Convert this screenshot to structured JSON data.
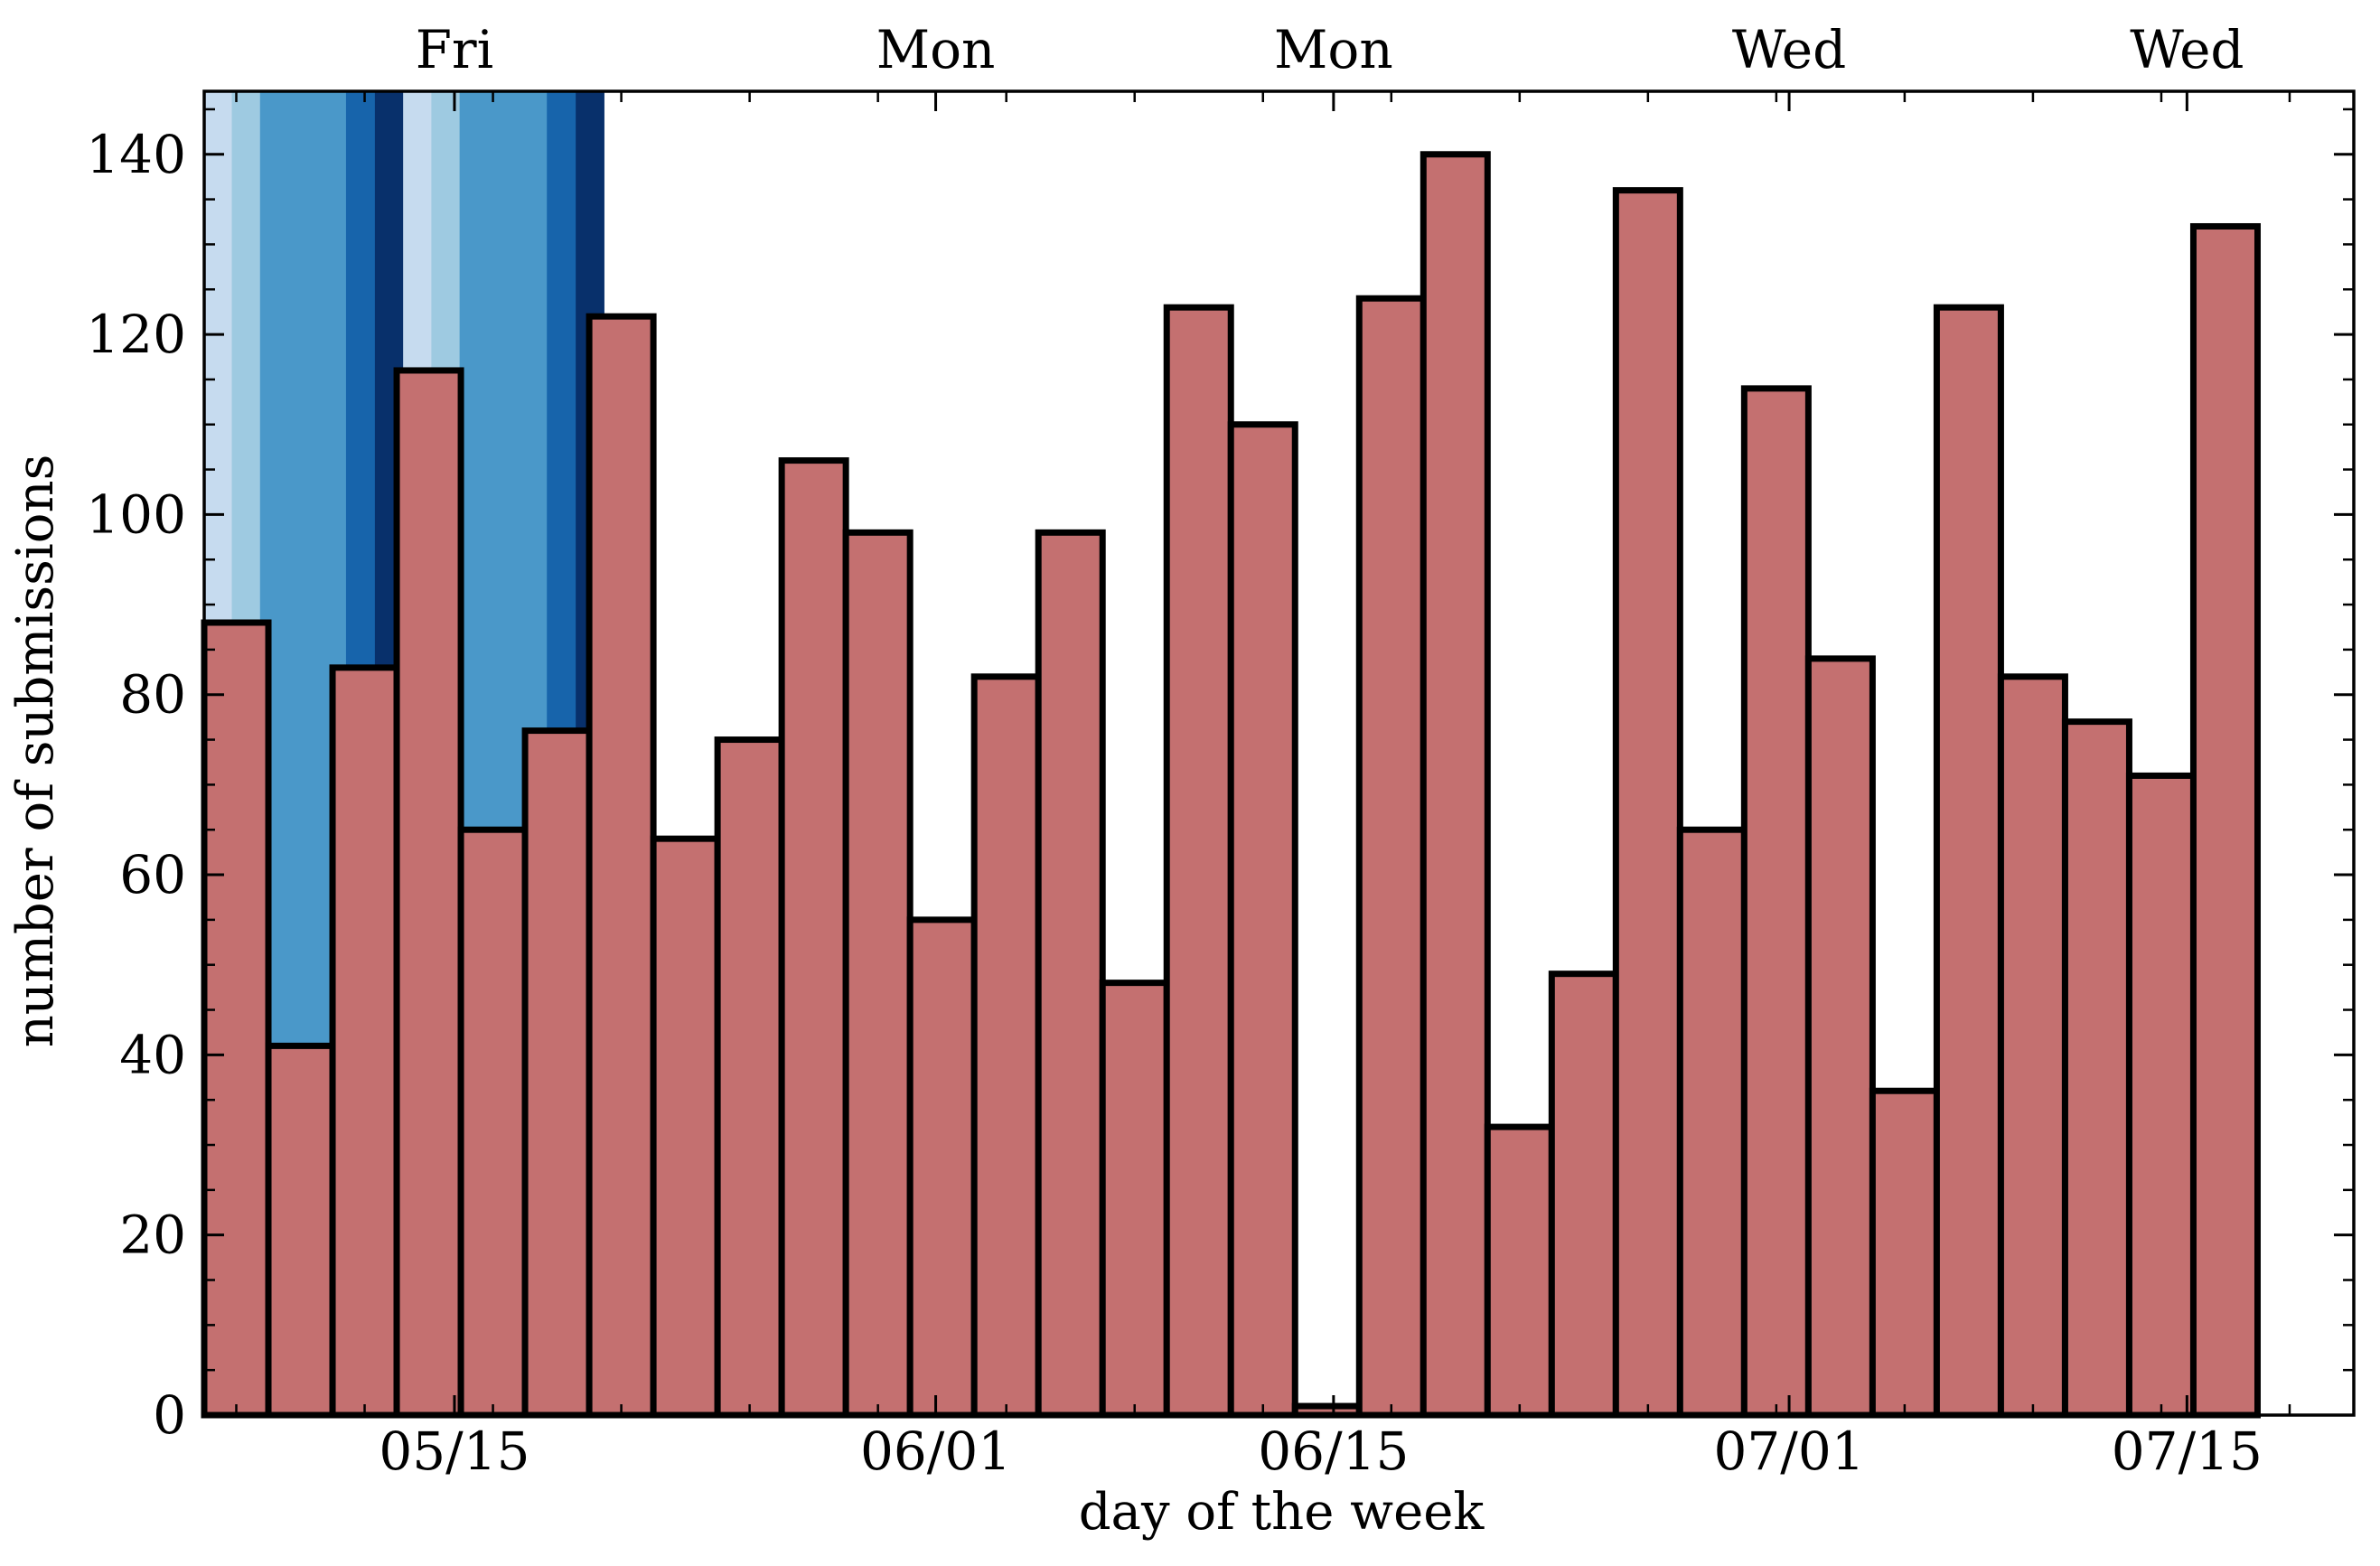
{
  "chart_data": {
    "type": "bar",
    "title": "",
    "xlabel": "day of the week",
    "ylabel": "number of submissions",
    "xlim": [
      6.5,
      40.0
    ],
    "ylim": [
      0,
      147
    ],
    "yticks": [
      0,
      20,
      40,
      60,
      80,
      100,
      120,
      140
    ],
    "ytick_labels": [
      "0",
      "20",
      "40",
      "60",
      "80",
      "100",
      "120",
      "140"
    ],
    "bottom_ticks": [
      {
        "x": 10.4,
        "label": "05/15"
      },
      {
        "x": 17.9,
        "label": "06/01"
      },
      {
        "x": 24.1,
        "label": "06/15"
      },
      {
        "x": 31.2,
        "label": "07/01"
      },
      {
        "x": 37.4,
        "label": "07/15"
      }
    ],
    "top_ticks": [
      {
        "x": 10.4,
        "label": "Fri"
      },
      {
        "x": 17.9,
        "label": "Mon"
      },
      {
        "x": 24.1,
        "label": "Mon"
      },
      {
        "x": 31.2,
        "label": "Wed"
      },
      {
        "x": 37.4,
        "label": "Wed"
      }
    ],
    "bar_width": 1.0,
    "bar_color": "#c47070",
    "bar_edge_color": "#000000",
    "bars": [
      {
        "x": 7,
        "value": 88
      },
      {
        "x": 8,
        "value": 41
      },
      {
        "x": 9,
        "value": 83
      },
      {
        "x": 10,
        "value": 116
      },
      {
        "x": 11,
        "value": 65
      },
      {
        "x": 12,
        "value": 76
      },
      {
        "x": 13,
        "value": 122
      },
      {
        "x": 14,
        "value": 64
      },
      {
        "x": 15,
        "value": 75
      },
      {
        "x": 16,
        "value": 106
      },
      {
        "x": 17,
        "value": 98
      },
      {
        "x": 18,
        "value": 55
      },
      {
        "x": 19,
        "value": 82
      },
      {
        "x": 20,
        "value": 98
      },
      {
        "x": 21,
        "value": 48
      },
      {
        "x": 22,
        "value": 123
      },
      {
        "x": 23,
        "value": 110
      },
      {
        "x": 24,
        "value": 1
      },
      {
        "x": 25,
        "value": 124
      },
      {
        "x": 26,
        "value": 140
      },
      {
        "x": 27,
        "value": 32
      },
      {
        "x": 28,
        "value": 49
      },
      {
        "x": 29,
        "value": 136
      },
      {
        "x": 30,
        "value": 65
      },
      {
        "x": 31,
        "value": 114
      },
      {
        "x": 32,
        "value": 84
      },
      {
        "x": 33,
        "value": 36
      },
      {
        "x": 34,
        "value": 123
      },
      {
        "x": 35,
        "value": 82
      },
      {
        "x": 36,
        "value": 77
      },
      {
        "x": 37,
        "value": 71
      },
      {
        "x": 38,
        "value": 132
      }
    ],
    "background_bands": [
      {
        "x0": 6.5,
        "x1": 6.93,
        "color": "#c6dbef"
      },
      {
        "x0": 6.93,
        "x1": 7.37,
        "color": "#9ecae1"
      },
      {
        "x0": 7.37,
        "x1": 8.71,
        "color": "#4a98c9"
      },
      {
        "x0": 8.71,
        "x1": 9.16,
        "color": "#1764ab"
      },
      {
        "x0": 9.16,
        "x1": 9.6,
        "color": "#08306b"
      },
      {
        "x0": 9.6,
        "x1": 10.04,
        "color": "#c6dbef"
      },
      {
        "x0": 10.04,
        "x1": 10.48,
        "color": "#9ecae1"
      },
      {
        "x0": 10.48,
        "x1": 11.84,
        "color": "#4a98c9"
      },
      {
        "x0": 11.84,
        "x1": 12.29,
        "color": "#1764ab"
      },
      {
        "x0": 12.29,
        "x1": 12.73,
        "color": "#08306b"
      }
    ]
  }
}
